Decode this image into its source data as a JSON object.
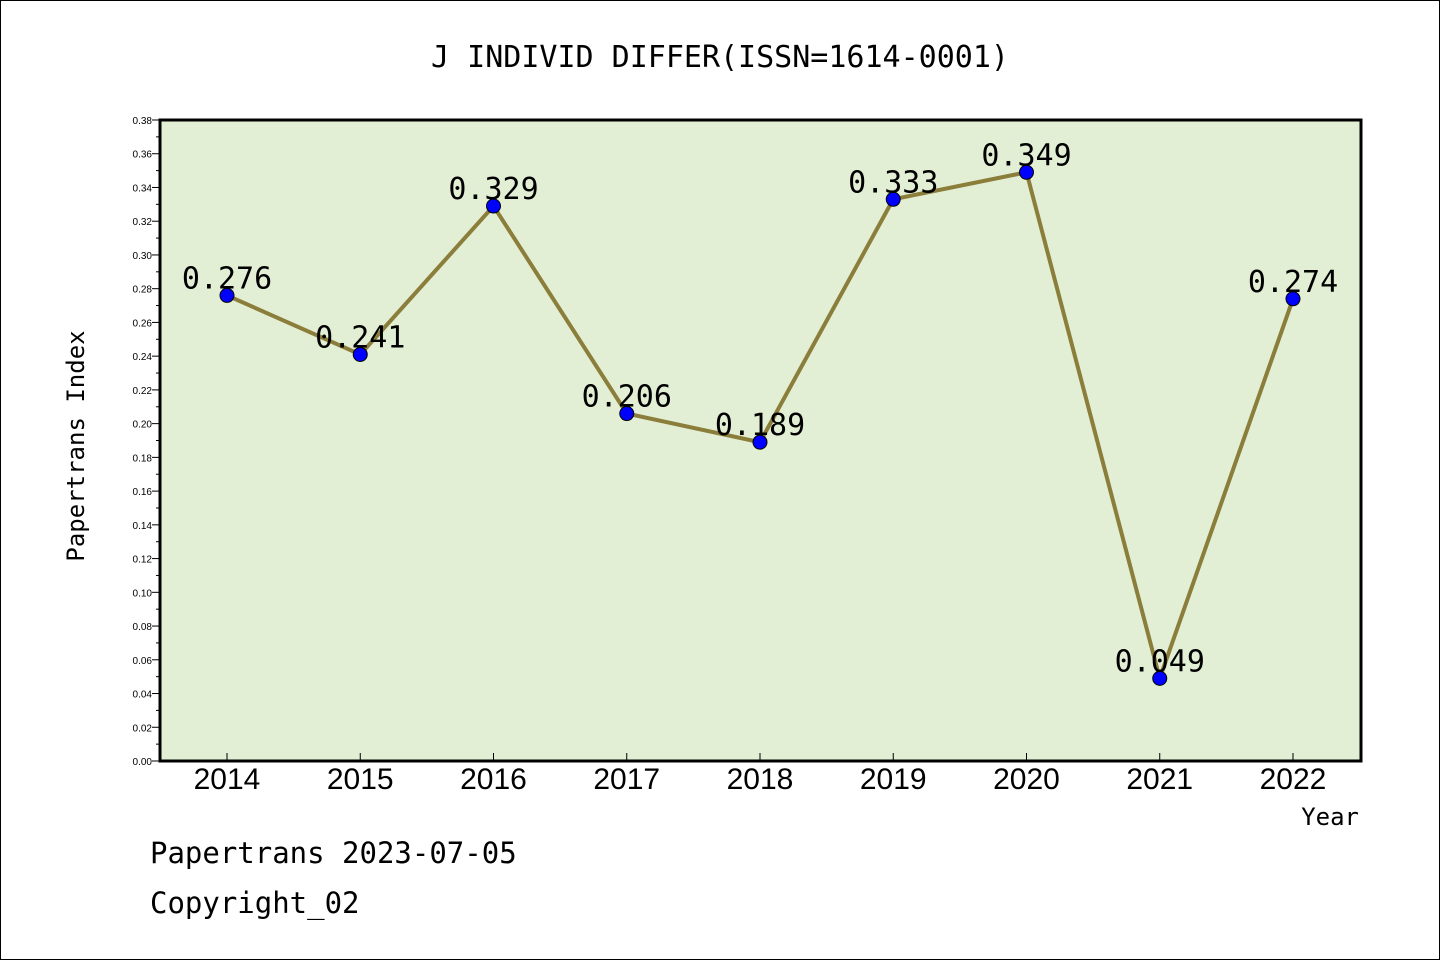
{
  "chart_data": {
    "type": "line",
    "title": "J INDIVID DIFFER(ISSN=1614-0001)",
    "xlabel": "Year",
    "ylabel": "Papertrans Index",
    "categories": [
      "2014",
      "2015",
      "2016",
      "2017",
      "2018",
      "2019",
      "2020",
      "2021",
      "2022"
    ],
    "series": [
      {
        "values": [
          0.276,
          0.241,
          0.329,
          0.206,
          0.189,
          0.333,
          0.349,
          0.049,
          0.274
        ],
        "data_labels": [
          "0.276",
          "0.241",
          "0.329",
          "0.206",
          "0.189",
          "0.333",
          "0.349",
          "0.049",
          "0.274"
        ],
        "line_color": "#8b7d3a",
        "marker_color": "#0000ff"
      }
    ],
    "ylim": [
      0,
      0.38
    ],
    "yticks": [
      "0.00",
      "0.02",
      "0.04",
      "0.06",
      "0.08",
      "0.10",
      "0.12",
      "0.14",
      "0.16",
      "0.18",
      "0.20",
      "0.22",
      "0.24",
      "0.26",
      "0.28",
      "0.30",
      "0.32",
      "0.34",
      "0.36",
      "0.38"
    ],
    "plot_background": "#e2efd5",
    "grid": false,
    "legend": "none"
  },
  "footer": {
    "line1": "Papertrans 2023-07-05",
    "line2": "Copyright_02"
  }
}
